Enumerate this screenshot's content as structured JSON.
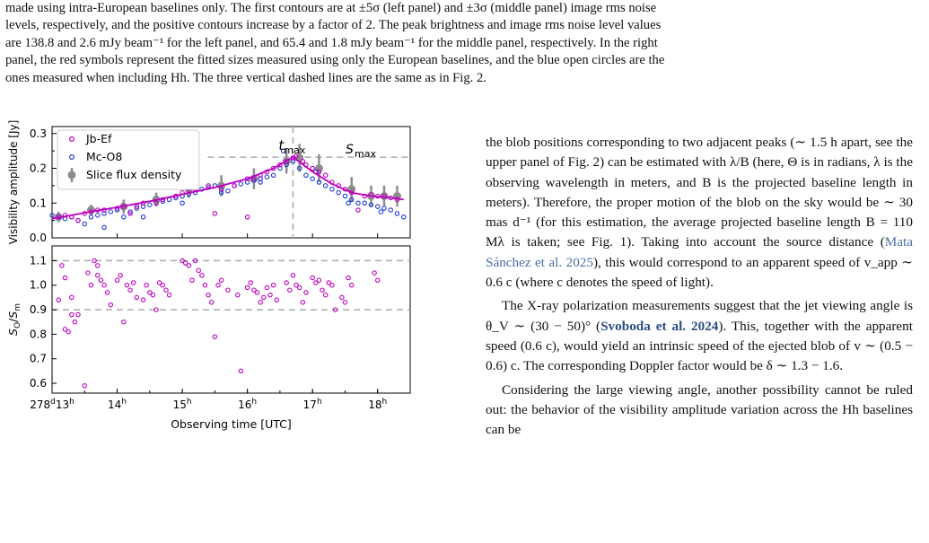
{
  "caption": {
    "line1": "made using intra-European baselines only. The first contours are at ±5σ (left panel) and ±3σ (middle panel) image rms noise",
    "line2": "levels, respectively, and the positive contours increase by a factor of 2. The peak brightness and image rms noise level values",
    "line3": "are 138.8 and 2.6 mJy beam⁻¹ for the left panel, and 65.4 and 1.8 mJy beam⁻¹ for the middle panel, respectively. In the right",
    "line4": "panel, the red symbols represent the fitted sizes measured using only the European baselines, and the blue open circles are the",
    "line5": "ones measured when including Hh. The three vertical dashed lines are the same as in Fig. 2."
  },
  "body": {
    "p1": "the blob positions corresponding to two adjacent peaks (∼ 1.5 h apart, see the upper panel of Fig. 2) can be estimated with λ/B (here, Θ is in radians, λ is the observing wavelength in meters, and B is the projected baseline length in meters). Therefore, the proper motion of the blob on the sky would be ∼ 30 mas d⁻¹ (for this estimation, the average projected baseline length B = 110 Mλ is taken; see Fig. 1). Taking into account the source distance (",
    "p1_cite": "Mata Sánchez et al. 2025",
    "p1_end": "), this would correspond to an apparent speed of v_app ∼ 0.6 c (where c denotes the speed of light).",
    "p2a": "The X-ray polarization measurements suggest that the jet viewing angle is θ_V ∼ (30 − 50)° (",
    "p2_cite": "Svoboda et al. 2024",
    "p2b": "). This, together with the apparent speed (0.6 c), would yield an intrinsic speed of the ejected blob of v ∼ (0.5 − 0.6) c. The corresponding Doppler factor would be δ ∼ 1.3 − 1.6.",
    "p3": "Considering the large viewing angle, another possibility cannot be ruled out: the behavior of the visibility amplitude variation across the Hh baselines can be"
  },
  "chart_data": [
    {
      "type": "scatter",
      "panel": "top",
      "xlabel": "",
      "ylabel": "Visibility amplitude [Jy]",
      "xlim": [
        13.0,
        18.5
      ],
      "ylim": [
        0.0,
        0.32
      ],
      "yticks": [
        "0.0",
        "0.1",
        "0.2",
        "0.3"
      ],
      "legend": {
        "position": "top-left",
        "entries": [
          "Jb-Ef",
          "Mc-O8",
          "Slice flux density"
        ]
      },
      "annotations": {
        "tmax": "t",
        "tmax_sub": "max",
        "smax": "S",
        "smax_sub": "max"
      },
      "tmax_x": 16.7,
      "smax_y": 0.232,
      "colors": {
        "jb_ef": "#c000c0",
        "mc_o8": "#1f3fd6",
        "slice": "#8c8c8c",
        "fit": "#c000c0"
      },
      "series": [
        {
          "name": "Jb-Ef",
          "x": [
            13.1,
            13.2,
            13.3,
            13.5,
            13.6,
            13.7,
            13.8,
            14.0,
            14.1,
            14.3,
            14.4,
            14.6,
            14.7,
            14.9,
            15.0,
            15.1,
            15.2,
            15.4,
            15.6,
            15.8,
            16.0,
            16.1,
            16.2,
            16.3,
            16.4,
            16.5,
            16.6,
            16.7,
            16.75,
            16.85,
            16.9,
            17.0,
            17.1,
            17.2,
            17.3,
            17.4,
            17.5,
            17.6,
            17.8,
            17.9,
            18.0,
            18.1,
            18.2,
            18.3,
            13.4,
            14.2,
            15.5,
            16.0,
            17.7
          ],
          "y": [
            0.06,
            0.065,
            0.06,
            0.07,
            0.075,
            0.08,
            0.08,
            0.085,
            0.09,
            0.09,
            0.1,
            0.1,
            0.11,
            0.12,
            0.13,
            0.14,
            0.14,
            0.15,
            0.14,
            0.15,
            0.17,
            0.17,
            0.18,
            0.19,
            0.2,
            0.21,
            0.22,
            0.23,
            0.235,
            0.22,
            0.21,
            0.2,
            0.19,
            0.18,
            0.16,
            0.15,
            0.14,
            0.13,
            0.12,
            0.125,
            0.12,
            0.12,
            0.115,
            0.11,
            0.05,
            0.07,
            0.07,
            0.06,
            0.08
          ]
        },
        {
          "name": "Mc-O8",
          "x": [
            13.0,
            13.1,
            13.2,
            13.3,
            13.4,
            13.5,
            13.6,
            13.7,
            13.8,
            13.9,
            14.0,
            14.1,
            14.2,
            14.3,
            14.4,
            14.5,
            14.6,
            14.7,
            14.8,
            14.9,
            15.0,
            15.1,
            15.2,
            15.3,
            15.4,
            15.5,
            15.6,
            15.7,
            15.8,
            15.9,
            16.0,
            16.1,
            16.2,
            16.3,
            16.4,
            16.5,
            16.6,
            16.7,
            16.8,
            16.9,
            17.0,
            17.1,
            17.2,
            17.3,
            17.4,
            17.5,
            17.6,
            17.7,
            17.8,
            17.9,
            18.0,
            18.1,
            18.2,
            18.3,
            18.4,
            13.8,
            14.4,
            15.0,
            15.6,
            16.2,
            16.55,
            17.05,
            17.55,
            18.05
          ],
          "y": [
            0.065,
            0.06,
            0.055,
            0.06,
            0.05,
            0.04,
            0.06,
            0.065,
            0.07,
            0.075,
            0.08,
            0.06,
            0.075,
            0.085,
            0.09,
            0.095,
            0.1,
            0.105,
            0.11,
            0.115,
            0.12,
            0.125,
            0.13,
            0.14,
            0.145,
            0.15,
            0.14,
            0.135,
            0.15,
            0.155,
            0.16,
            0.165,
            0.17,
            0.175,
            0.18,
            0.2,
            0.21,
            0.22,
            0.2,
            0.18,
            0.17,
            0.16,
            0.15,
            0.14,
            0.13,
            0.12,
            0.11,
            0.1,
            0.1,
            0.095,
            0.09,
            0.085,
            0.08,
            0.07,
            0.06,
            0.03,
            0.06,
            0.1,
            0.13,
            0.16,
            0.25,
            0.19,
            0.1,
            0.075
          ]
        },
        {
          "name": "Slice flux density",
          "x": [
            13.1,
            13.6,
            14.1,
            14.6,
            15.1,
            15.6,
            16.1,
            16.6,
            16.8,
            17.1,
            17.6,
            17.9,
            18.1,
            18.3
          ],
          "y": [
            0.06,
            0.08,
            0.09,
            0.11,
            0.14,
            0.15,
            0.17,
            0.22,
            0.23,
            0.2,
            0.14,
            0.12,
            0.12,
            0.12
          ],
          "err": [
            0.015,
            0.015,
            0.02,
            0.02,
            0.025,
            0.03,
            0.03,
            0.035,
            0.04,
            0.04,
            0.035,
            0.03,
            0.03,
            0.03
          ]
        }
      ],
      "fit": {
        "x": [
          13.0,
          13.5,
          14.0,
          14.5,
          15.0,
          15.5,
          16.0,
          16.4,
          16.7,
          17.0,
          17.3,
          17.6,
          17.9,
          18.2,
          18.4
        ],
        "y": [
          0.055,
          0.072,
          0.088,
          0.105,
          0.125,
          0.145,
          0.17,
          0.2,
          0.232,
          0.19,
          0.155,
          0.13,
          0.12,
          0.115,
          0.11
        ]
      }
    },
    {
      "type": "scatter",
      "panel": "bottom",
      "xlabel": "Observing time [UTC]",
      "ylabel": "S_O/S_m",
      "xlim": [
        13.0,
        18.5
      ],
      "ylim": [
        0.56,
        1.16
      ],
      "yticks": [
        "0.6",
        "0.7",
        "0.8",
        "0.9",
        "1.0",
        "1.1"
      ],
      "hlines": [
        1.1,
        0.9
      ],
      "xticks": [
        {
          "value": 13,
          "main": "278",
          "sup1": "d",
          "mid": "13",
          "sup2": "h"
        },
        {
          "value": 14,
          "main": "14",
          "sup2": "h"
        },
        {
          "value": 15,
          "main": "15",
          "sup2": "h"
        },
        {
          "value": 16,
          "main": "16",
          "sup2": "h"
        },
        {
          "value": 17,
          "main": "17",
          "sup2": "h"
        },
        {
          "value": 18,
          "main": "18",
          "sup2": "h"
        }
      ],
      "series": [
        {
          "name": "",
          "x": [
            13.1,
            13.15,
            13.2,
            13.2,
            13.25,
            13.3,
            13.3,
            13.35,
            13.5,
            13.6,
            13.65,
            13.7,
            13.7,
            13.75,
            13.8,
            13.85,
            13.9,
            14.0,
            14.05,
            14.1,
            14.15,
            14.2,
            14.25,
            14.3,
            14.45,
            14.5,
            14.55,
            14.6,
            14.65,
            14.7,
            14.75,
            14.8,
            15.0,
            15.05,
            15.1,
            15.15,
            15.2,
            15.25,
            15.3,
            15.35,
            15.4,
            15.45,
            15.5,
            15.6,
            15.7,
            15.9,
            16.0,
            16.05,
            16.1,
            16.15,
            16.2,
            16.25,
            16.3,
            16.35,
            16.4,
            16.45,
            16.6,
            16.65,
            16.7,
            16.75,
            16.8,
            16.85,
            16.9,
            17.0,
            17.05,
            17.1,
            17.15,
            17.2,
            17.25,
            17.3,
            17.35,
            17.45,
            17.5,
            17.55,
            17.6,
            17.95,
            18.0,
            13.4,
            13.55,
            14.4,
            15.85,
            15.55
          ],
          "y": [
            0.94,
            1.08,
            0.82,
            1.03,
            0.81,
            0.88,
            0.95,
            0.85,
            0.59,
            1.0,
            1.1,
            1.08,
            1.04,
            1.02,
            1.0,
            0.97,
            0.92,
            1.02,
            1.04,
            0.85,
            1.0,
            0.98,
            1.01,
            0.95,
            1.0,
            0.97,
            0.96,
            0.9,
            1.01,
            1.0,
            0.98,
            0.96,
            1.1,
            1.09,
            1.08,
            1.02,
            1.1,
            1.06,
            1.04,
            1.0,
            0.96,
            0.93,
            0.79,
            1.02,
            0.98,
            0.65,
            0.99,
            1.01,
            0.98,
            0.97,
            0.93,
            0.95,
            0.99,
            0.96,
            1.0,
            0.94,
            1.01,
            0.98,
            1.04,
            1.0,
            0.99,
            0.93,
            0.97,
            1.03,
            1.01,
            1.02,
            0.98,
            0.96,
            1.01,
            1.0,
            0.9,
            0.95,
            0.93,
            1.03,
            1.0,
            1.05,
            1.02,
            0.88,
            1.05,
            0.94,
            0.96,
            1.0
          ]
        }
      ]
    }
  ]
}
